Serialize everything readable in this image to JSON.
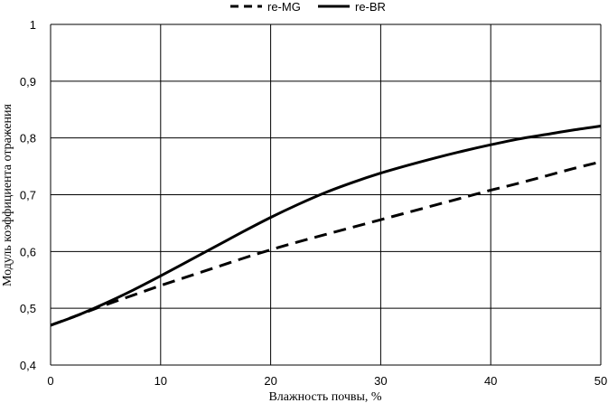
{
  "chart_data": {
    "type": "line",
    "title": "",
    "xlabel": "Влажность почвы, %",
    "ylabel": "Модуль коэффициента отражения",
    "xlim": [
      0,
      50
    ],
    "ylim": [
      0.4,
      1
    ],
    "x_ticks": [
      0,
      10,
      20,
      30,
      40,
      50
    ],
    "y_ticks": [
      0.4,
      0.5,
      0.6,
      0.7,
      0.8,
      0.9,
      1.0
    ],
    "x_tick_labels": [
      "0",
      "10",
      "20",
      "30",
      "40",
      "50"
    ],
    "y_tick_labels": [
      "0,4",
      "0,5",
      "0,6",
      "0,7",
      "0,8",
      "0,9",
      "1"
    ],
    "grid": true,
    "legend_position": "top-center",
    "series": [
      {
        "name": "re-MG",
        "style": "dashed",
        "color": "#000000",
        "x": [
          0,
          2.5,
          5,
          7.5,
          10,
          12.5,
          15,
          17.5,
          20,
          22.5,
          25,
          27.5,
          30,
          32.5,
          35,
          37.5,
          40,
          42.5,
          45,
          47.5,
          50
        ],
        "y": [
          0.47,
          0.488,
          0.506,
          0.523,
          0.54,
          0.556,
          0.572,
          0.588,
          0.603,
          0.617,
          0.63,
          0.643,
          0.656,
          0.669,
          0.682,
          0.695,
          0.708,
          0.72,
          0.733,
          0.746,
          0.758
        ]
      },
      {
        "name": "re-BR",
        "style": "solid",
        "color": "#000000",
        "x": [
          0,
          2.5,
          5,
          7.5,
          10,
          12.5,
          15,
          17.5,
          20,
          22.5,
          25,
          27.5,
          30,
          32.5,
          35,
          37.5,
          40,
          42.5,
          45,
          47.5,
          50
        ],
        "y": [
          0.47,
          0.488,
          0.509,
          0.532,
          0.557,
          0.583,
          0.609,
          0.635,
          0.66,
          0.683,
          0.704,
          0.722,
          0.738,
          0.752,
          0.765,
          0.777,
          0.788,
          0.798,
          0.806,
          0.814,
          0.821
        ]
      }
    ]
  }
}
